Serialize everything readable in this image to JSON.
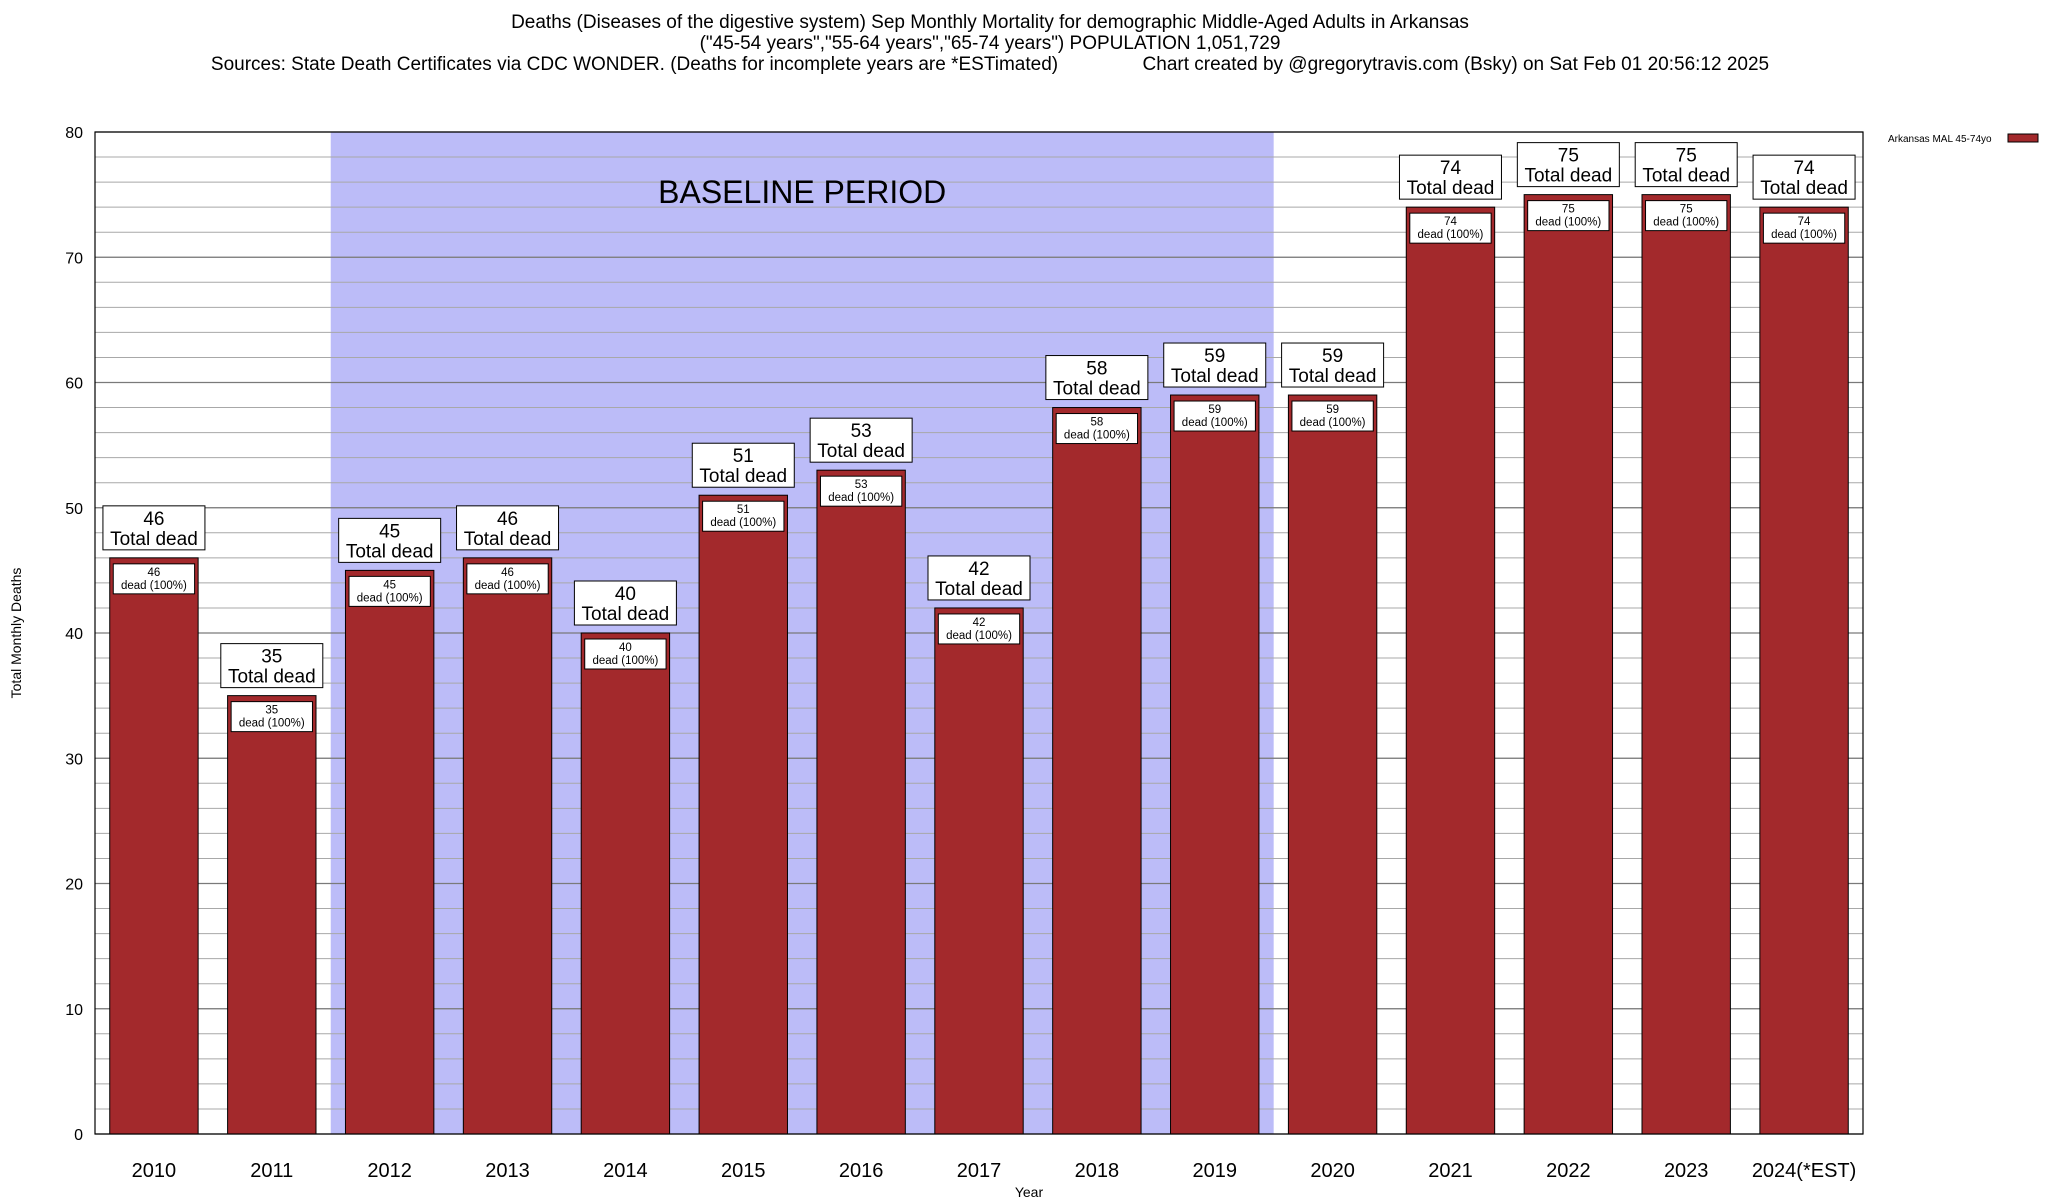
{
  "title_lines": [
    "Deaths (Diseases of the digestive system) Sep Monthly Mortality for demographic Middle-Aged Adults in Arkansas",
    "(\"45-54 years\",\"55-64 years\",\"65-74 years\") POPULATION 1,051,729",
    "Sources: State Death Certificates via CDC WONDER. (Deaths for incomplete years are *ESTimated)                Chart created by @gregorytravis.com (Bsky) on Sat Feb 01 20:56:12 2025"
  ],
  "chart_data": {
    "type": "bar",
    "xlabel": "Year",
    "ylabel": "Total Monthly Deaths",
    "ylim": [
      0,
      80
    ],
    "yticks": [
      0,
      10,
      20,
      30,
      40,
      50,
      60,
      70,
      80
    ],
    "grid": true,
    "legend": {
      "label": "Arkansas MAL 45-74yo",
      "placement": "top-right-outside"
    },
    "shaded_region": {
      "label": "BASELINE PERIOD",
      "from": "2012",
      "to": "2019",
      "color": "#bcbcf8"
    },
    "categories": [
      "2010",
      "2011",
      "2012",
      "2013",
      "2014",
      "2015",
      "2016",
      "2017",
      "2018",
      "2019",
      "2020",
      "2021",
      "2022",
      "2023",
      "2024(*EST)"
    ],
    "series": [
      {
        "name": "Arkansas MAL 45-74yo",
        "color": "#a3292c",
        "values": [
          46,
          35,
          45,
          46,
          40,
          51,
          53,
          42,
          58,
          59,
          59,
          74,
          75,
          75,
          74
        ]
      }
    ],
    "top_label_suffix": "Total dead",
    "inner_label_suffix": "dead (100%)"
  }
}
